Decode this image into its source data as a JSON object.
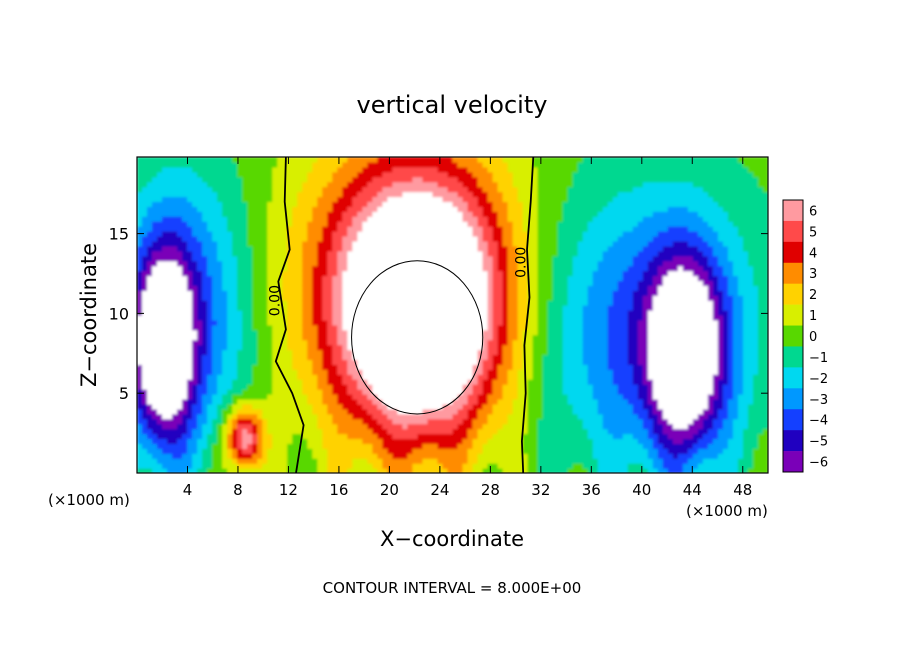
{
  "chart_data": {
    "type": "heatmap",
    "title": "vertical velocity",
    "xlabel": "X−coordinate",
    "ylabel": "Z−coordinate",
    "x_unit": "(×1000 m)",
    "x_unit_right": "(×1000 m)",
    "footer": "CONTOUR INTERVAL = 8.000E+00",
    "xlim": [
      0,
      50
    ],
    "ylim": [
      0,
      19.8
    ],
    "x_ticks": [
      "4",
      "8",
      "12",
      "16",
      "20",
      "24",
      "28",
      "32",
      "36",
      "40",
      "44",
      "48"
    ],
    "y_ticks": [
      "5",
      "10",
      "15"
    ],
    "colorbar": {
      "levels": [
        "6",
        "5",
        "4",
        "3",
        "2",
        "1",
        "0",
        "−1",
        "−2",
        "−3",
        "−4",
        "−5",
        "−6"
      ],
      "colors": [
        "#ff9aa0",
        "#ff4a4a",
        "#e00000",
        "#ff8c00",
        "#ffd200",
        "#d8ef00",
        "#58d800",
        "#00d890",
        "#00d8f0",
        "#0098ff",
        "#1440ff",
        "#2000c0",
        "#7a00b8"
      ]
    },
    "contour_labels": [
      "0.00",
      "0.00"
    ],
    "features": [
      {
        "kind": "updraft-core",
        "x": 22.5,
        "z": 10,
        "rx": 6,
        "rz": 7.5,
        "amp": 9
      },
      {
        "kind": "updraft-halo",
        "x": 21.5,
        "z": 12,
        "rx": 9,
        "rz": 9,
        "amp": 5
      },
      {
        "kind": "downdraft-core",
        "x": 2,
        "z": 8,
        "rx": 2.5,
        "rz": 6,
        "amp": -8
      },
      {
        "kind": "downdraft-core",
        "x": 43.5,
        "z": 7.5,
        "rx": 3,
        "rz": 6,
        "amp": -8
      },
      {
        "kind": "downdraft-band",
        "x": 40,
        "z": 9,
        "rx": 9,
        "rz": 9,
        "amp": -4
      },
      {
        "kind": "downdraft-band",
        "x": 4,
        "z": 10,
        "rx": 5,
        "rz": 9,
        "amp": -4
      },
      {
        "kind": "updraft-low",
        "x": 8.5,
        "z": 2.2,
        "rx": 1.5,
        "rz": 2,
        "amp": 7
      }
    ]
  }
}
